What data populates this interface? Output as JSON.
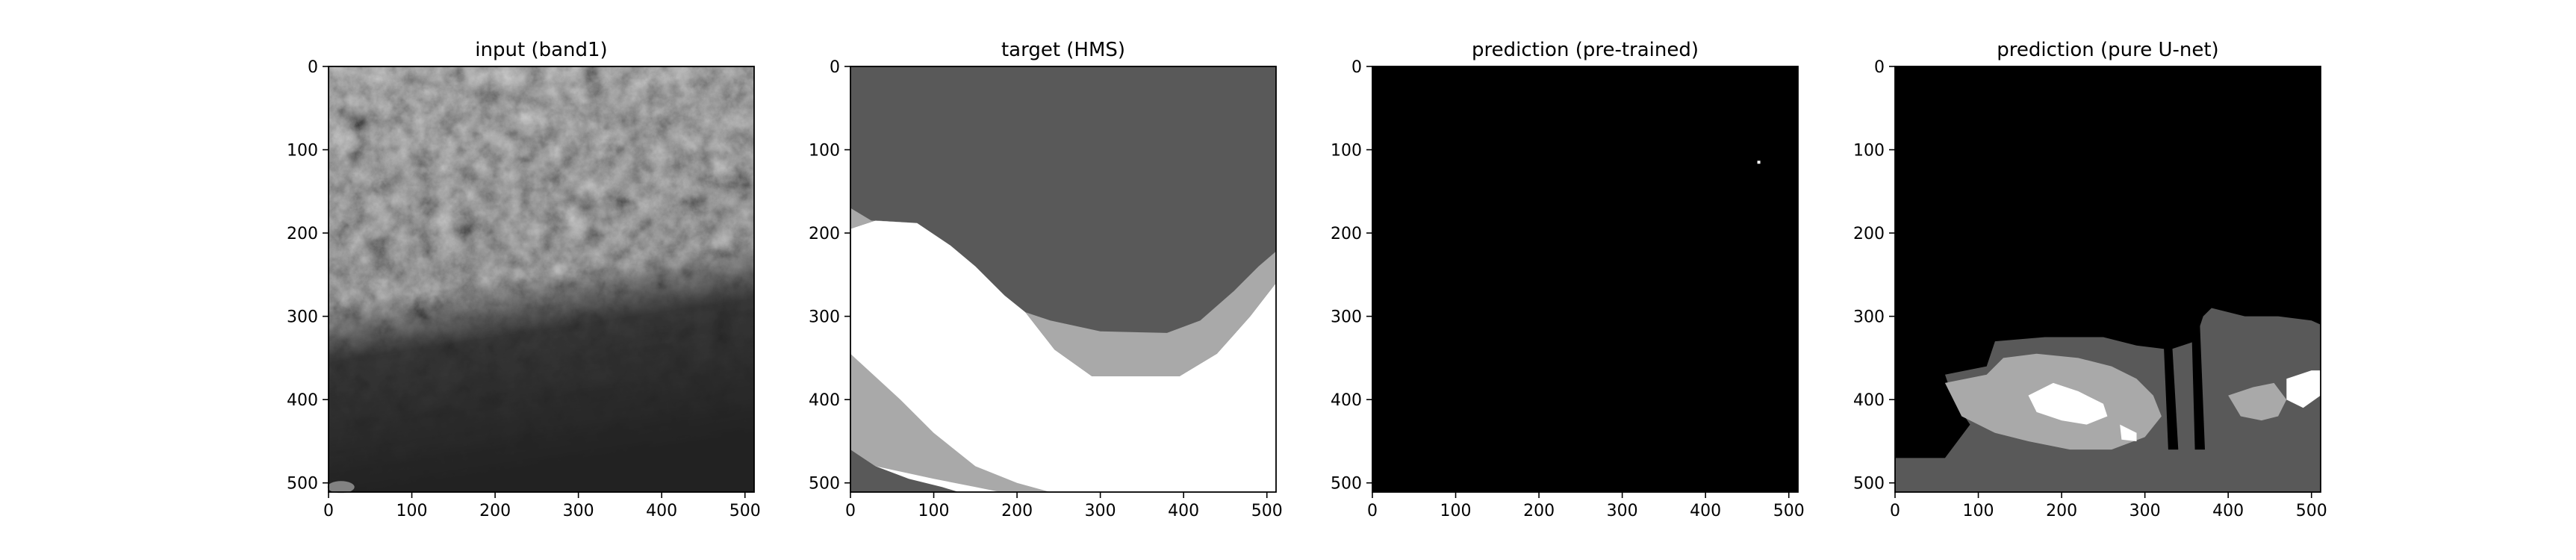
{
  "chart_data": [
    {
      "type": "heatmap",
      "title": "input (band1)",
      "colormap": "gray",
      "xlim": [
        0,
        511
      ],
      "ylim": [
        511,
        0
      ],
      "xticks": [
        0,
        100,
        200,
        300,
        400,
        500
      ],
      "yticks": [
        0,
        100,
        200,
        300,
        400,
        500
      ],
      "content": "satellite-image"
    },
    {
      "type": "heatmap",
      "title": "target (HMS)",
      "colormap": "gray",
      "xlim": [
        0,
        511
      ],
      "ylim": [
        511,
        0
      ],
      "xticks": [
        0,
        100,
        200,
        300,
        400,
        500
      ],
      "yticks": [
        0,
        100,
        200,
        300,
        400,
        500
      ],
      "background_color": "#595959",
      "regions": [
        {
          "fill": "#ffffff",
          "polygon": [
            [
              0,
              195
            ],
            [
              30,
              185
            ],
            [
              80,
              188
            ],
            [
              120,
              215
            ],
            [
              150,
              240
            ],
            [
              185,
              275
            ],
            [
              210,
              295
            ],
            [
              245,
              340
            ],
            [
              290,
              372
            ],
            [
              340,
              372
            ],
            [
              395,
              372
            ],
            [
              440,
              345
            ],
            [
              480,
              300
            ],
            [
              511,
              260
            ],
            [
              511,
              511
            ],
            [
              0,
              511
            ]
          ]
        },
        {
          "fill": "#a9a9a9",
          "polygon": [
            [
              0,
              195
            ],
            [
              0,
              170
            ],
            [
              25,
              185
            ],
            [
              80,
              188
            ],
            [
              120,
              215
            ],
            [
              150,
              240
            ],
            [
              185,
              275
            ],
            [
              210,
              295
            ],
            [
              240,
              305
            ],
            [
              300,
              318
            ],
            [
              380,
              320
            ],
            [
              420,
              305
            ],
            [
              460,
              270
            ],
            [
              490,
              240
            ],
            [
              511,
              222
            ],
            [
              511,
              260
            ],
            [
              480,
              300
            ],
            [
              440,
              345
            ],
            [
              395,
              372
            ],
            [
              340,
              372
            ],
            [
              290,
              372
            ],
            [
              245,
              340
            ],
            [
              210,
              295
            ],
            [
              185,
              275
            ],
            [
              150,
              240
            ],
            [
              120,
              215
            ],
            [
              80,
              188
            ],
            [
              30,
              185
            ]
          ]
        },
        {
          "fill": "#a9a9a9",
          "polygon": [
            [
              0,
              345
            ],
            [
              60,
              400
            ],
            [
              100,
              440
            ],
            [
              150,
              480
            ],
            [
              200,
              500
            ],
            [
              240,
              511
            ],
            [
              0,
              511
            ]
          ]
        },
        {
          "fill": "#ffffff",
          "polygon": [
            [
              0,
              460
            ],
            [
              30,
              480
            ],
            [
              100,
              495
            ],
            [
              150,
              505
            ],
            [
              180,
              511
            ],
            [
              0,
              511
            ]
          ]
        }
      ],
      "regions_note_cover": [
        {
          "fill": "#595959",
          "polygon": [
            [
              0,
              460
            ],
            [
              30,
              480
            ],
            [
              70,
              495
            ],
            [
              110,
              505
            ],
            [
              130,
              511
            ],
            [
              0,
              511
            ]
          ]
        }
      ]
    },
    {
      "type": "heatmap",
      "title": "prediction (pre-trained)",
      "colormap": "gray",
      "xlim": [
        0,
        511
      ],
      "ylim": [
        511,
        0
      ],
      "xticks": [
        0,
        100,
        200,
        300,
        400,
        500
      ],
      "yticks": [
        0,
        100,
        200,
        300,
        400,
        500
      ],
      "background_color": "#000000",
      "points": [
        {
          "x": 464,
          "y": 115,
          "fill": "#ffffff"
        }
      ]
    },
    {
      "type": "heatmap",
      "title": "prediction (pure U-net)",
      "colormap": "gray",
      "xlim": [
        0,
        511
      ],
      "ylim": [
        511,
        0
      ],
      "xticks": [
        0,
        100,
        200,
        300,
        400,
        500
      ],
      "yticks": [
        0,
        100,
        200,
        300,
        400,
        500
      ],
      "background_color": "#000000",
      "regions": [
        {
          "fill": "#595959",
          "polygon": [
            [
              60,
              370
            ],
            [
              110,
              360
            ],
            [
              120,
              330
            ],
            [
              180,
              325
            ],
            [
              250,
              325
            ],
            [
              290,
              335
            ],
            [
              330,
              340
            ],
            [
              360,
              330
            ],
            [
              370,
              300
            ],
            [
              380,
              290
            ],
            [
              420,
              300
            ],
            [
              460,
              300
            ],
            [
              500,
              305
            ],
            [
              511,
              310
            ],
            [
              511,
              511
            ],
            [
              0,
              511
            ],
            [
              0,
              470
            ],
            [
              60,
              470
            ],
            [
              90,
              430
            ],
            [
              70,
              400
            ]
          ]
        },
        {
          "fill": "#000000",
          "polygon": [
            [
              0,
              470
            ],
            [
              60,
              470
            ],
            [
              90,
              430
            ],
            [
              70,
              400
            ],
            [
              60,
              370
            ],
            [
              0,
              370
            ]
          ]
        },
        {
          "fill": "#a9a9a9",
          "polygon": [
            [
              60,
              380
            ],
            [
              110,
              370
            ],
            [
              130,
              350
            ],
            [
              170,
              345
            ],
            [
              220,
              350
            ],
            [
              260,
              360
            ],
            [
              290,
              375
            ],
            [
              310,
              395
            ],
            [
              320,
              420
            ],
            [
              300,
              445
            ],
            [
              260,
              460
            ],
            [
              210,
              460
            ],
            [
              160,
              450
            ],
            [
              120,
              440
            ],
            [
              80,
              420
            ]
          ]
        },
        {
          "fill": "#ffffff",
          "polygon": [
            [
              160,
              395
            ],
            [
              190,
              380
            ],
            [
              220,
              390
            ],
            [
              250,
              405
            ],
            [
              255,
              420
            ],
            [
              230,
              430
            ],
            [
              200,
              425
            ],
            [
              170,
              415
            ]
          ]
        },
        {
          "fill": "#ffffff",
          "polygon": [
            [
              270,
              430
            ],
            [
              290,
              440
            ],
            [
              290,
              450
            ],
            [
              272,
              448
            ]
          ]
        },
        {
          "fill": "#a9a9a9",
          "polygon": [
            [
              400,
              395
            ],
            [
              430,
              385
            ],
            [
              455,
              380
            ],
            [
              470,
              400
            ],
            [
              460,
              420
            ],
            [
              440,
              425
            ],
            [
              415,
              420
            ]
          ]
        },
        {
          "fill": "#ffffff",
          "polygon": [
            [
              470,
              375
            ],
            [
              500,
              365
            ],
            [
              511,
              365
            ],
            [
              511,
              395
            ],
            [
              490,
              410
            ],
            [
              470,
              400
            ]
          ]
        },
        {
          "fill": "#000000",
          "polygon": [
            [
              322,
              320
            ],
            [
              332,
              320
            ],
            [
              340,
              460
            ],
            [
              328,
              460
            ]
          ]
        },
        {
          "fill": "#000000",
          "polygon": [
            [
              356,
              310
            ],
            [
              366,
              310
            ],
            [
              372,
              460
            ],
            [
              360,
              460
            ]
          ]
        }
      ]
    }
  ]
}
